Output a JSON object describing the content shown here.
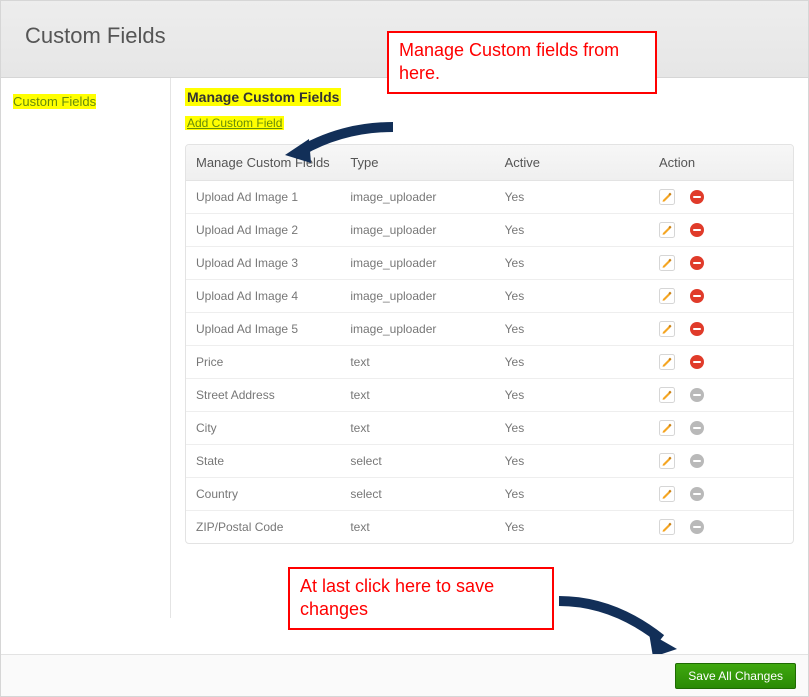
{
  "page": {
    "title": "Custom Fields"
  },
  "callouts": {
    "top": "Manage Custom fields from here.",
    "bottom": "At last click here to save changes"
  },
  "sidebar": {
    "items": [
      {
        "label": "Custom Fields"
      }
    ]
  },
  "main": {
    "heading": "Manage Custom Fields",
    "add_link": "Add Custom Field",
    "save_button": "Save All Changes",
    "table": {
      "columns": [
        "Manage Custom Fields",
        "Type",
        "Active",
        "Action"
      ],
      "rows": [
        {
          "name": "Upload Ad Image 1",
          "type": "image_uploader",
          "active": "Yes",
          "deletable": true
        },
        {
          "name": "Upload Ad Image 2",
          "type": "image_uploader",
          "active": "Yes",
          "deletable": true
        },
        {
          "name": "Upload Ad Image 3",
          "type": "image_uploader",
          "active": "Yes",
          "deletable": true
        },
        {
          "name": "Upload Ad Image 4",
          "type": "image_uploader",
          "active": "Yes",
          "deletable": true
        },
        {
          "name": "Upload Ad Image 5",
          "type": "image_uploader",
          "active": "Yes",
          "deletable": true
        },
        {
          "name": "Price",
          "type": "text",
          "active": "Yes",
          "deletable": true
        },
        {
          "name": "Street Address",
          "type": "text",
          "active": "Yes",
          "deletable": false
        },
        {
          "name": "City",
          "type": "text",
          "active": "Yes",
          "deletable": false
        },
        {
          "name": "State",
          "type": "select",
          "active": "Yes",
          "deletable": false
        },
        {
          "name": "Country",
          "type": "select",
          "active": "Yes",
          "deletable": false
        },
        {
          "name": "ZIP/Postal Code",
          "type": "text",
          "active": "Yes",
          "deletable": false
        }
      ]
    }
  },
  "colors": {
    "highlight": "#ffff00",
    "link": "#688c0a",
    "callout_border": "#ff0000",
    "arrow": "#122f58",
    "save_bg_top": "#3fa80f",
    "save_bg_bot": "#2a8a05",
    "delete_red": "#e03b2a",
    "disabled_gray": "#b9b9b9",
    "edit_pencil": "#f5a623"
  }
}
